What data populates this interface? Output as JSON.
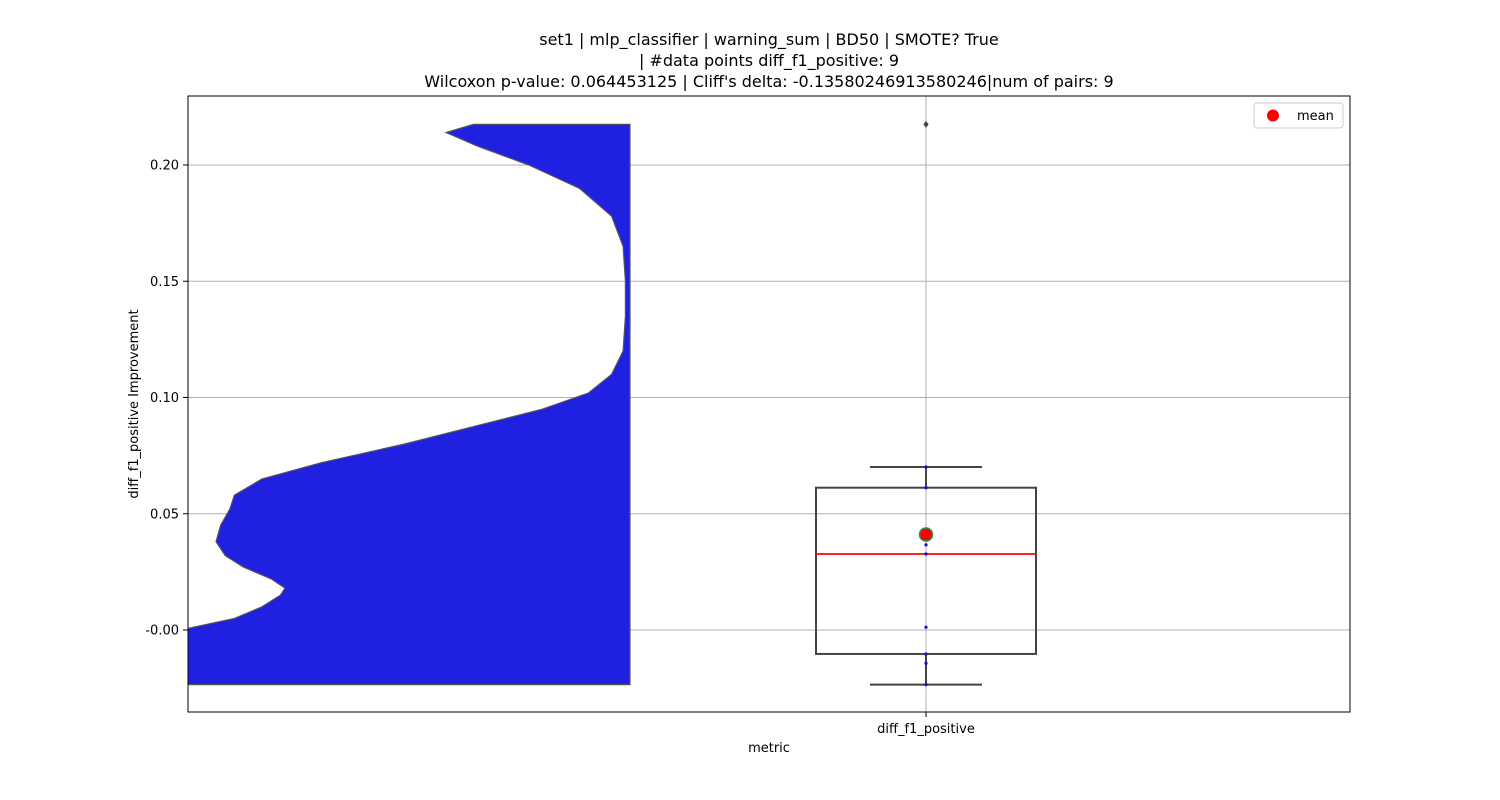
{
  "chart_data": {
    "type": "violin+box",
    "title_lines": [
      "set1 | mlp_classifier | warning_sum | BD50 | SMOTE? True",
      "| #data points diff_f1_positive: 9",
      "Wilcoxon p-value: 0.064453125 | Cliff's delta: -0.13580246913580246|num of pairs: 9"
    ],
    "xlabel": "metric",
    "ylabel": "diff_f1_positive Improvement",
    "categories": [
      "diff_f1_positive"
    ],
    "yticks": [
      "-0.00",
      "0.05",
      "0.10",
      "0.15",
      "0.20"
    ],
    "ytick_values": [
      0.0,
      0.05,
      0.1,
      0.15,
      0.2
    ],
    "ylim": [
      -0.035,
      0.23
    ],
    "grid": true,
    "legend": {
      "placement": "top-right",
      "entries": [
        {
          "label": "mean",
          "color": "#ff0000"
        }
      ]
    },
    "box": {
      "whisker_low": -0.0235,
      "q1": -0.0103,
      "median": 0.0327,
      "q3": 0.0612,
      "whisker_high": 0.0701,
      "mean": 0.0411,
      "outliers": [
        0.2175
      ],
      "median_color": "#ff0000",
      "mean_color": "#ff0000",
      "mean_edge_color": "#2e8b57"
    },
    "points": [
      -0.0235,
      -0.0143,
      -0.0103,
      0.0012,
      0.0327,
      0.0366,
      0.0612,
      0.0701,
      0.2175
    ],
    "violin": {
      "color": "#2020e0",
      "edge_color": "#555555",
      "range": [
        -0.0235,
        0.2175
      ],
      "density_profile": [
        [
          -0.0235,
          1.0
        ],
        [
          -0.015,
          1.0
        ],
        [
          -0.005,
          1.0
        ],
        [
          -0.0005,
          0.99
        ],
        [
          0.005,
          0.86
        ],
        [
          0.01,
          0.8
        ],
        [
          0.015,
          0.76
        ],
        [
          0.018,
          0.75
        ],
        [
          0.022,
          0.78
        ],
        [
          0.027,
          0.84
        ],
        [
          0.032,
          0.88
        ],
        [
          0.038,
          0.9
        ],
        [
          0.045,
          0.89
        ],
        [
          0.052,
          0.87
        ],
        [
          0.058,
          0.86
        ],
        [
          0.065,
          0.8
        ],
        [
          0.072,
          0.67
        ],
        [
          0.08,
          0.49
        ],
        [
          0.087,
          0.35
        ],
        [
          0.095,
          0.19
        ],
        [
          0.102,
          0.09
        ],
        [
          0.11,
          0.04
        ],
        [
          0.12,
          0.015
        ],
        [
          0.135,
          0.01
        ],
        [
          0.15,
          0.01
        ],
        [
          0.165,
          0.015
        ],
        [
          0.178,
          0.04
        ],
        [
          0.19,
          0.11
        ],
        [
          0.2,
          0.22
        ],
        [
          0.208,
          0.33
        ],
        [
          0.214,
          0.4
        ],
        [
          0.2175,
          0.34
        ]
      ]
    },
    "colors": {
      "grid": "#b0b0b0",
      "box_edge": "#444444",
      "whisker": "#444444",
      "point": "#1010d0",
      "outlier": "#444444"
    }
  }
}
